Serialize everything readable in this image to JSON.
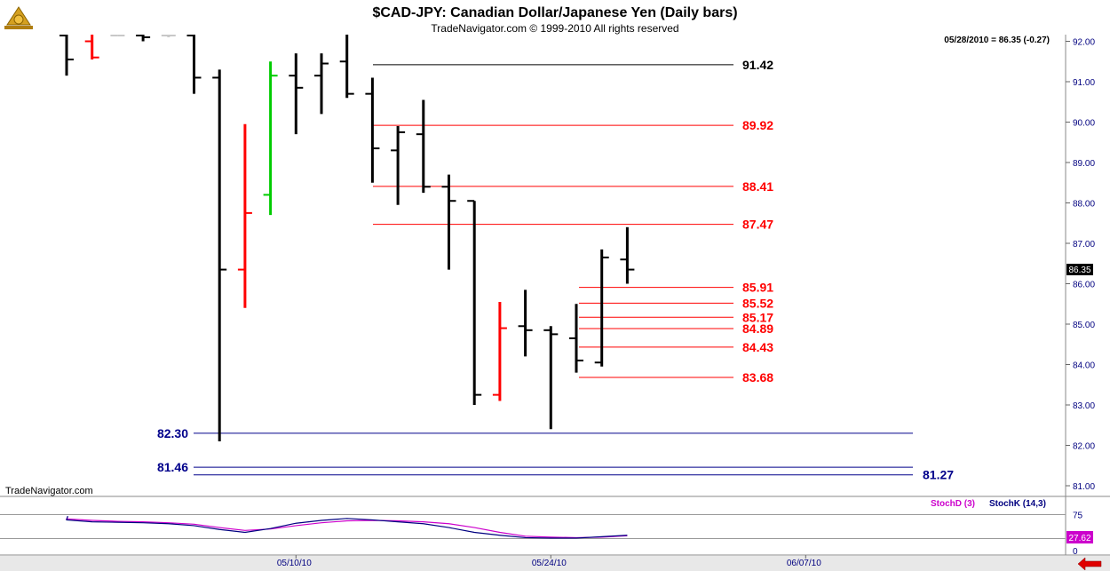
{
  "header": {
    "title": "$CAD-JPY:  Canadian Dollar/Japanese Yen  (Daily bars)",
    "subtitle": "TradeNavigator.com © 1999-2010 All rights reserved",
    "logo_icon": "sextant-logo-icon"
  },
  "watermark": "TradeNavigator.com",
  "last_price_readout": "05/28/2010 = 86.35 (-0.27)",
  "current_price_tag": "86.35",
  "colors": {
    "up_bar": "#000000",
    "down_bar": "#ff0000",
    "green_bar": "#00cc00",
    "fib_line": "#ff0000",
    "black_level": "#000000",
    "support_line": "#00008b",
    "axis_text": "#000080",
    "stochD": "#cc00cc",
    "stochK": "#000080",
    "price_tag_bg": "#000000"
  },
  "chart_data": [
    {
      "type": "ohlc",
      "title": "$CAD-JPY:  Canadian Dollar/Japanese Yen  (Daily bars)",
      "ylim": [
        80.8,
        92.3
      ],
      "y_ticks": [
        "92.00",
        "91.00",
        "90.00",
        "89.00",
        "88.00",
        "87.00",
        "86.00",
        "85.00",
        "84.00",
        "83.00",
        "82.00",
        "81.00"
      ],
      "x_tick_labels": [
        {
          "label": "05/10/10",
          "bar_index": 9
        },
        {
          "label": "05/24/10",
          "bar_index": 19
        },
        {
          "label": "06/07/10",
          "bar_index": 29
        }
      ],
      "bars": [
        {
          "o": 92.2,
          "h": 92.3,
          "l": 91.15,
          "c": 91.55,
          "color": "black"
        },
        {
          "o": 92.0,
          "h": 92.3,
          "l": 91.55,
          "c": 91.6,
          "color": "red"
        },
        {
          "o": 92.3,
          "h": 92.3,
          "l": 92.2,
          "c": 92.25,
          "color": "gray"
        },
        {
          "o": 92.3,
          "h": 92.3,
          "l": 92.0,
          "c": 92.1,
          "color": "black"
        },
        {
          "o": 92.3,
          "h": 92.3,
          "l": 92.1,
          "c": 92.3,
          "color": "gray"
        },
        {
          "o": 92.3,
          "h": 92.3,
          "l": 90.7,
          "c": 91.1,
          "color": "black"
        },
        {
          "o": 91.1,
          "h": 91.3,
          "l": 82.1,
          "c": 86.35,
          "color": "black"
        },
        {
          "o": 86.35,
          "h": 89.95,
          "l": 85.4,
          "c": 87.75,
          "color": "red"
        },
        {
          "o": 88.2,
          "h": 91.5,
          "l": 87.7,
          "c": 91.15,
          "color": "green"
        },
        {
          "o": 91.15,
          "h": 91.7,
          "l": 89.7,
          "c": 90.85,
          "color": "black"
        },
        {
          "o": 91.15,
          "h": 91.7,
          "l": 90.2,
          "c": 91.45,
          "color": "black"
        },
        {
          "o": 91.5,
          "h": 92.3,
          "l": 90.6,
          "c": 90.7,
          "color": "black"
        },
        {
          "o": 90.7,
          "h": 91.1,
          "l": 88.5,
          "c": 89.35,
          "color": "black"
        },
        {
          "o": 89.3,
          "h": 89.9,
          "l": 87.95,
          "c": 89.75,
          "color": "black"
        },
        {
          "o": 89.7,
          "h": 90.55,
          "l": 88.25,
          "c": 88.4,
          "color": "black"
        },
        {
          "o": 88.4,
          "h": 88.7,
          "l": 86.35,
          "c": 88.05,
          "color": "black"
        },
        {
          "o": 88.05,
          "h": 88.05,
          "l": 83.0,
          "c": 83.25,
          "color": "black"
        },
        {
          "o": 83.25,
          "h": 85.55,
          "l": 83.1,
          "c": 84.9,
          "color": "red"
        },
        {
          "o": 84.95,
          "h": 85.85,
          "l": 84.2,
          "c": 84.85,
          "color": "black"
        },
        {
          "o": 84.85,
          "h": 84.95,
          "l": 82.4,
          "c": 84.75,
          "color": "black"
        },
        {
          "o": 84.65,
          "h": 85.5,
          "l": 83.8,
          "c": 84.1,
          "color": "black"
        },
        {
          "o": 84.05,
          "h": 86.85,
          "l": 83.95,
          "c": 86.65,
          "color": "black"
        },
        {
          "o": 86.6,
          "h": 87.4,
          "l": 86.0,
          "c": 86.35,
          "color": "black"
        }
      ],
      "levels": [
        {
          "value": 91.42,
          "label": "91.42",
          "color": "black",
          "from_bar": 12,
          "to_bar": 25
        },
        {
          "value": 89.92,
          "label": "89.92",
          "color": "red",
          "from_bar": 12,
          "to_bar": 25
        },
        {
          "value": 88.41,
          "label": "88.41",
          "color": "red",
          "from_bar": 12,
          "to_bar": 25
        },
        {
          "value": 87.47,
          "label": "87.47",
          "color": "red",
          "from_bar": 12,
          "to_bar": 25
        },
        {
          "value": 85.91,
          "label": "85.91",
          "color": "red",
          "from_bar": 19,
          "to_bar": 25
        },
        {
          "value": 85.52,
          "label": "85.52",
          "color": "red",
          "from_bar": 19,
          "to_bar": 25
        },
        {
          "value": 85.17,
          "label": "85.17",
          "color": "red",
          "from_bar": 19,
          "to_bar": 25
        },
        {
          "value": 84.89,
          "label": "84.89",
          "color": "red",
          "from_bar": 19,
          "to_bar": 25
        },
        {
          "value": 84.43,
          "label": "84.43",
          "color": "red",
          "from_bar": 19,
          "to_bar": 25
        },
        {
          "value": 83.68,
          "label": "83.68",
          "color": "red",
          "from_bar": 19,
          "to_bar": 25
        },
        {
          "value": 82.3,
          "label": "82.30",
          "color": "blue",
          "from_bar": 5,
          "to_bar": 31
        },
        {
          "value": 81.46,
          "label": "81.46",
          "color": "blue",
          "from_bar": 5,
          "to_bar": 31
        },
        {
          "value": 81.27,
          "label": "81.27",
          "color": "blue",
          "from_bar": 5,
          "to_bar": 31
        }
      ]
    },
    {
      "type": "line",
      "ylim": [
        0,
        100
      ],
      "y_ticks": [
        "75",
        "0"
      ],
      "current_value_label": "27.62",
      "series": [
        {
          "name": "StochD (3)",
          "color": "#cc00cc",
          "values": [
            {
              "x": -1,
              "y": 70
            },
            {
              "x": 0,
              "y": 66
            },
            {
              "x": 1,
              "y": 63
            },
            {
              "x": 2,
              "y": 61
            },
            {
              "x": 3,
              "y": 60
            },
            {
              "x": 4,
              "y": 58
            },
            {
              "x": 5,
              "y": 55
            },
            {
              "x": 6,
              "y": 48
            },
            {
              "x": 7,
              "y": 42
            },
            {
              "x": 8,
              "y": 45
            },
            {
              "x": 9,
              "y": 52
            },
            {
              "x": 10,
              "y": 58
            },
            {
              "x": 11,
              "y": 62
            },
            {
              "x": 12,
              "y": 63
            },
            {
              "x": 13,
              "y": 62
            },
            {
              "x": 14,
              "y": 60
            },
            {
              "x": 15,
              "y": 56
            },
            {
              "x": 16,
              "y": 48
            },
            {
              "x": 17,
              "y": 38
            },
            {
              "x": 18,
              "y": 30
            },
            {
              "x": 19,
              "y": 28
            },
            {
              "x": 20,
              "y": 27
            },
            {
              "x": 21,
              "y": 28
            },
            {
              "x": 22,
              "y": 31
            }
          ]
        },
        {
          "name": "StochK (14,3)",
          "color": "#000080",
          "values": [
            {
              "x": -1,
              "y": 72
            },
            {
              "x": 0,
              "y": 64
            },
            {
              "x": 1,
              "y": 60
            },
            {
              "x": 2,
              "y": 59
            },
            {
              "x": 3,
              "y": 58
            },
            {
              "x": 4,
              "y": 56
            },
            {
              "x": 5,
              "y": 52
            },
            {
              "x": 6,
              "y": 44
            },
            {
              "x": 7,
              "y": 38
            },
            {
              "x": 8,
              "y": 46
            },
            {
              "x": 9,
              "y": 57
            },
            {
              "x": 10,
              "y": 63
            },
            {
              "x": 11,
              "y": 67
            },
            {
              "x": 12,
              "y": 64
            },
            {
              "x": 13,
              "y": 60
            },
            {
              "x": 14,
              "y": 56
            },
            {
              "x": 15,
              "y": 48
            },
            {
              "x": 16,
              "y": 38
            },
            {
              "x": 17,
              "y": 32
            },
            {
              "x": 18,
              "y": 27
            },
            {
              "x": 19,
              "y": 26
            },
            {
              "x": 20,
              "y": 26
            },
            {
              "x": 21,
              "y": 29
            },
            {
              "x": 22,
              "y": 32
            }
          ]
        }
      ]
    }
  ]
}
